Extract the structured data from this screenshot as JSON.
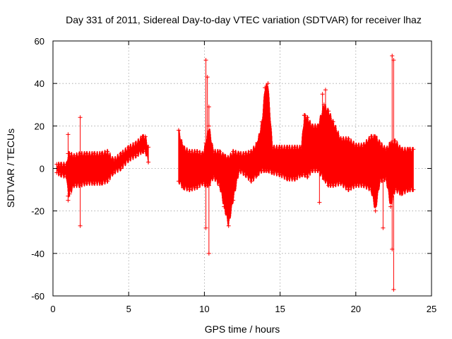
{
  "chart_data": {
    "type": "scatter",
    "title": "Day 331 of 2011, Sidereal Day-to-day VTEC variation (SDTVAR) for receiver lhaz",
    "xlabel": "GPS time / hours",
    "ylabel": "SDTVAR / TECUs",
    "xlim": [
      0,
      25
    ],
    "ylim": [
      -60,
      60
    ],
    "xticks": [
      0,
      5,
      10,
      15,
      20,
      25
    ],
    "yticks": [
      -60,
      -40,
      -20,
      0,
      20,
      40,
      60
    ],
    "grid": true,
    "color": "#ff0000",
    "marker": "plus",
    "envelope": {
      "x": [
        0.25,
        0.5,
        0.9,
        1.0,
        1.1,
        1.4,
        1.8,
        2.2,
        2.7,
        3.2,
        3.6,
        4.0,
        4.5,
        5.0,
        5.5,
        5.9,
        6.1,
        6.3,
        8.3,
        8.6,
        9.0,
        9.5,
        9.9,
        10.1,
        10.3,
        10.6,
        11.0,
        11.3,
        11.6,
        11.9,
        12.3,
        12.7,
        13.1,
        13.5,
        13.8,
        14.0,
        14.2,
        14.5,
        15.0,
        15.5,
        16.0,
        16.4,
        16.6,
        16.8,
        17.1,
        17.5,
        17.9,
        18.2,
        18.5,
        19.0,
        19.5,
        20.0,
        20.5,
        21.0,
        21.3,
        21.6,
        22.0,
        22.3,
        22.6,
        23.0,
        23.5,
        23.8
      ],
      "upper": [
        2,
        2,
        2,
        7,
        7,
        6,
        7,
        7,
        7,
        7,
        8,
        4,
        7,
        10,
        12,
        15,
        15,
        10,
        18,
        10,
        8,
        8,
        7,
        12,
        20,
        8,
        8,
        6,
        5,
        8,
        7,
        7,
        8,
        12,
        22,
        38,
        40,
        10,
        10,
        10,
        10,
        10,
        25,
        24,
        20,
        20,
        30,
        27,
        22,
        14,
        14,
        11,
        11,
        15,
        15,
        12,
        9,
        12,
        13,
        9,
        9,
        9
      ],
      "lower": [
        -2,
        -3,
        -4,
        -13,
        -12,
        -8,
        -8,
        -7,
        -7,
        -7,
        -6,
        -2,
        0,
        4,
        6,
        8,
        8,
        3,
        -6,
        -9,
        -10,
        -9,
        -7,
        -8,
        -8,
        -4,
        -8,
        -18,
        -27,
        -15,
        -1,
        -3,
        -6,
        -3,
        -1,
        -1,
        -1,
        -2,
        -3,
        -5,
        -5,
        -3,
        -3,
        -4,
        -1,
        -1,
        -5,
        -8,
        -8,
        -7,
        -10,
        -8,
        -8,
        -10,
        -20,
        -6,
        -5,
        -18,
        -10,
        -12,
        -10,
        -10
      ]
    },
    "spikes": [
      {
        "x": 1.0,
        "y": 16
      },
      {
        "x": 1.0,
        "y": -15
      },
      {
        "x": 1.8,
        "y": 24
      },
      {
        "x": 1.8,
        "y": -27
      },
      {
        "x": 10.1,
        "y": 51
      },
      {
        "x": 10.2,
        "y": 43
      },
      {
        "x": 10.3,
        "y": 29
      },
      {
        "x": 10.1,
        "y": -28
      },
      {
        "x": 10.3,
        "y": -40
      },
      {
        "x": 16.6,
        "y": 25
      },
      {
        "x": 17.8,
        "y": 35
      },
      {
        "x": 18.0,
        "y": 37
      },
      {
        "x": 17.6,
        "y": -16
      },
      {
        "x": 22.4,
        "y": 53
      },
      {
        "x": 22.5,
        "y": 51
      },
      {
        "x": 21.8,
        "y": -28
      },
      {
        "x": 22.4,
        "y": -38
      },
      {
        "x": 22.5,
        "y": -57
      }
    ]
  }
}
